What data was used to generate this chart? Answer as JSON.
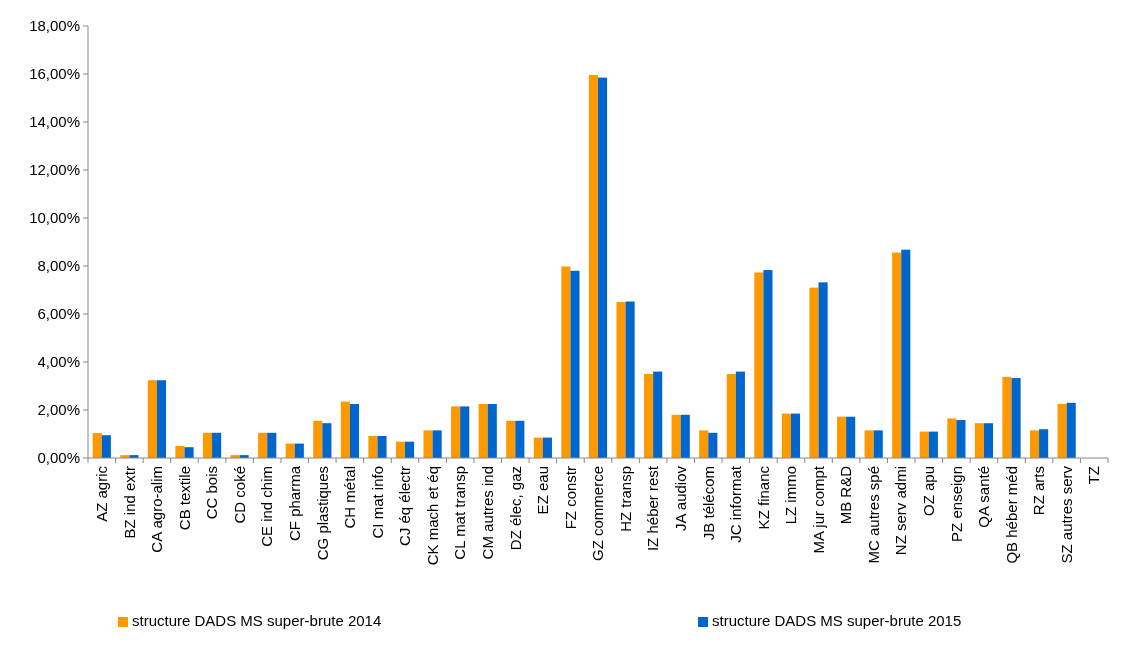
{
  "chart_data": {
    "type": "bar",
    "categories": [
      "AZ agric",
      "BZ ind extr",
      "CA agro-alim",
      "CB textile",
      "CC bois",
      "CD coké",
      "CE ind chim",
      "CF pharma",
      "CG plastiques",
      "CH métal",
      "CI mat info",
      "CJ éq électr",
      "CK mach et éq",
      "CL mat transp",
      "CM autres ind",
      "DZ élec, gaz",
      "EZ eau",
      "FZ constr",
      "GZ commerce",
      "HZ transp",
      "IZ héber rest",
      "JA audiov",
      "JB télécom",
      "JC informat",
      "KZ financ",
      "LZ immo",
      "MA jur compt",
      "MB R&D",
      "MC autres spé",
      "NZ serv admi",
      "OZ apu",
      "PZ enseign",
      "QA santé",
      "QB héber méd",
      "RZ arts",
      "SZ autres serv",
      "TZ"
    ],
    "series": [
      {
        "name": "structure DADS MS super-brute 2014",
        "color": "#ff9900",
        "values": [
          1.04,
          0.12,
          3.24,
          0.5,
          1.05,
          0.12,
          1.05,
          0.6,
          1.55,
          2.35,
          0.92,
          0.68,
          1.15,
          2.15,
          2.25,
          1.55,
          0.85,
          7.98,
          15.96,
          6.5,
          3.5,
          1.8,
          1.15,
          3.5,
          7.73,
          1.85,
          7.1,
          1.72,
          1.15,
          8.56,
          1.1,
          1.65,
          1.45,
          3.38,
          1.15,
          2.25,
          0
        ]
      },
      {
        "name": "structure DADS MS super-brute 2015",
        "color": "#0066cc",
        "values": [
          0.95,
          0.12,
          3.24,
          0.45,
          1.05,
          0.12,
          1.05,
          0.6,
          1.45,
          2.25,
          0.92,
          0.68,
          1.15,
          2.15,
          2.25,
          1.55,
          0.85,
          7.8,
          15.85,
          6.52,
          3.6,
          1.8,
          1.05,
          3.6,
          7.83,
          1.85,
          7.32,
          1.72,
          1.15,
          8.68,
          1.1,
          1.58,
          1.45,
          3.33,
          1.2,
          2.3,
          0
        ]
      }
    ],
    "ylim": [
      0,
      18
    ],
    "yticks": [
      {
        "value": 0,
        "label": "0,00%"
      },
      {
        "value": 2,
        "label": "2,00%"
      },
      {
        "value": 4,
        "label": "4,00%"
      },
      {
        "value": 6,
        "label": "6,00%"
      },
      {
        "value": 8,
        "label": "8,00%"
      },
      {
        "value": 10,
        "label": "10,00%"
      },
      {
        "value": 12,
        "label": "12,00%"
      },
      {
        "value": 14,
        "label": "14,00%"
      },
      {
        "value": 16,
        "label": "16,00%"
      },
      {
        "value": 18,
        "label": "18,00%"
      }
    ],
    "legend": "bottom"
  }
}
